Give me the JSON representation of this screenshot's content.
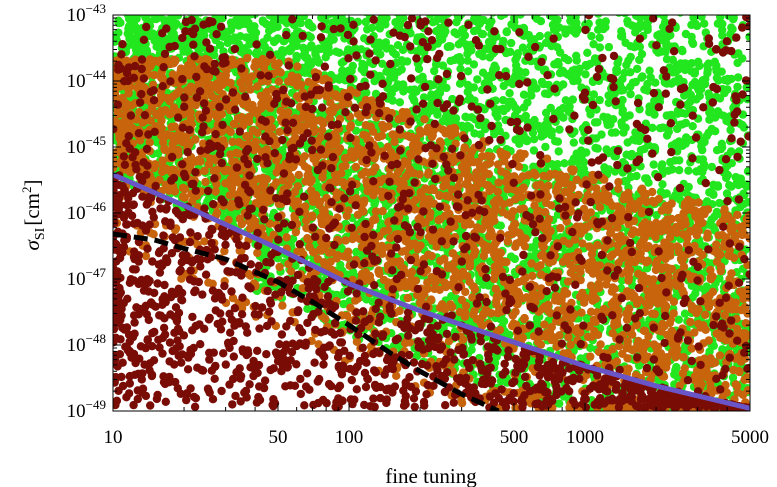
{
  "chart_data": {
    "type": "scatter",
    "title": "",
    "xlabel": "fine tuning",
    "ylabel": {
      "symbol": "σ",
      "subscript": "SI",
      "unit": "[cm",
      "unit_exp": "2",
      "unit_close": "]"
    },
    "xscale": "log",
    "yscale": "log",
    "xlim": [
      10,
      5000
    ],
    "ylim": [
      1e-49,
      1e-43
    ],
    "x_ticks": [
      {
        "value": 10,
        "label": "10"
      },
      {
        "value": 50,
        "label": "50"
      },
      {
        "value": 100,
        "label": "100"
      },
      {
        "value": 500,
        "label": "500"
      },
      {
        "value": 1000,
        "label": "1000"
      },
      {
        "value": 5000,
        "label": "5000"
      }
    ],
    "y_ticks": [
      {
        "value": 1e-49,
        "base": "10",
        "exp": "−49"
      },
      {
        "value": 1e-48,
        "base": "10",
        "exp": "−48"
      },
      {
        "value": 1e-47,
        "base": "10",
        "exp": "−47"
      },
      {
        "value": 1e-46,
        "base": "10",
        "exp": "−46"
      },
      {
        "value": 1e-45,
        "base": "10",
        "exp": "−45"
      },
      {
        "value": 1e-44,
        "base": "10",
        "exp": "−44"
      },
      {
        "value": 1e-43,
        "base": "10",
        "exp": "−43"
      }
    ],
    "grid": false,
    "colors": {
      "green": "#22e61e",
      "orange": "#c8640c",
      "darkred": "#7a0c06",
      "blue_line": "#6a55c8",
      "dashed_line": "#000000"
    },
    "point_groups": [
      {
        "color": "green",
        "region": "fills above the blue line across the full range; thinning to scattered points down to ~1e-48.8"
      },
      {
        "color": "orange",
        "region": "dense band mostly above the blue line from ~1e-44 down to the line"
      },
      {
        "color": "darkred",
        "region": "scattered everywhere; dense below the dashed line at low fine tuning"
      }
    ],
    "series": [
      {
        "style": "solid",
        "color": "blue_line",
        "x": [
          10,
          20,
          50,
          100,
          200,
          500,
          1000,
          2000,
          5000
        ],
        "y": [
          3.8e-46,
          1.3e-46,
          2.9e-47,
          8.5e-48,
          3.3e-48,
          1.1e-48,
          4.8e-49,
          2.4e-49,
          1.1e-49
        ]
      },
      {
        "style": "dashed",
        "color": "dashed_line",
        "x": [
          10,
          15,
          20,
          30,
          50,
          70,
          100,
          150,
          200,
          300,
          430
        ],
        "y": [
          4.8e-47,
          3.9e-47,
          2.9e-47,
          2e-47,
          9e-48,
          4.5e-48,
          2e-48,
          7.5e-49,
          4e-49,
          1.8e-49,
          1e-49
        ]
      }
    ]
  }
}
